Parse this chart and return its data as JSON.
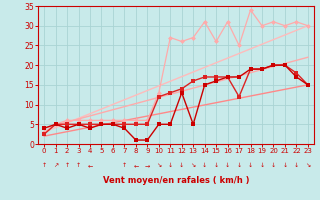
{
  "bg_color": "#c8eaea",
  "grid_color": "#aad4d4",
  "xlabel": "Vent moyen/en rafales ( km/h )",
  "xlabel_color": "#cc0000",
  "tick_color": "#cc0000",
  "xlim": [
    -0.5,
    23.5
  ],
  "ylim": [
    0,
    35
  ],
  "yticks": [
    0,
    5,
    10,
    15,
    20,
    25,
    30,
    35
  ],
  "xticks": [
    0,
    1,
    2,
    3,
    4,
    5,
    6,
    7,
    8,
    9,
    10,
    11,
    12,
    13,
    14,
    15,
    16,
    17,
    18,
    19,
    20,
    21,
    22,
    23
  ],
  "series": [
    {
      "comment": "lightest pink - nearly linear high trend (rafales max)",
      "x": [
        0,
        1,
        2,
        3,
        4,
        5,
        6,
        7,
        8,
        9,
        10,
        11,
        12,
        13,
        14,
        15,
        16,
        17,
        18,
        19,
        20,
        21,
        22,
        23
      ],
      "y": [
        3,
        5,
        6,
        6,
        6,
        6,
        6,
        6,
        6,
        6,
        13,
        27,
        26,
        27,
        31,
        26,
        31,
        25,
        34,
        30,
        31,
        30,
        31,
        30
      ],
      "color": "#ffaaaa",
      "lw": 0.9,
      "ms": 2.5,
      "marker": "D"
    },
    {
      "comment": "light pink linear trend line",
      "x": [
        0,
        23
      ],
      "y": [
        3,
        30
      ],
      "color": "#ffbbbb",
      "lw": 1.0,
      "ms": 0,
      "marker": ""
    },
    {
      "comment": "medium pink - second linear trend",
      "x": [
        0,
        23
      ],
      "y": [
        4,
        22
      ],
      "color": "#ffaaaa",
      "lw": 1.0,
      "ms": 0,
      "marker": ""
    },
    {
      "comment": "darker medium - third linear trend",
      "x": [
        0,
        23
      ],
      "y": [
        2,
        15
      ],
      "color": "#ff8888",
      "lw": 1.0,
      "ms": 0,
      "marker": ""
    },
    {
      "comment": "mid red jagged line with markers (vent moyen upper)",
      "x": [
        0,
        1,
        2,
        3,
        4,
        5,
        6,
        7,
        8,
        9,
        10,
        11,
        12,
        13,
        14,
        15,
        16,
        17,
        18,
        19,
        20,
        21,
        22,
        23
      ],
      "y": [
        2.5,
        5,
        5,
        5,
        5,
        5,
        5,
        5,
        5,
        5,
        12,
        13,
        14,
        16,
        17,
        17,
        17,
        12,
        19,
        19,
        20,
        20,
        18,
        15
      ],
      "color": "#dd2222",
      "lw": 1.0,
      "ms": 2.5,
      "marker": "s"
    },
    {
      "comment": "dark red jagged line - lower volatile",
      "x": [
        0,
        1,
        2,
        3,
        4,
        5,
        6,
        7,
        8,
        9,
        10,
        11,
        12,
        13,
        14,
        15,
        16,
        17,
        18,
        19,
        20,
        21,
        22,
        23
      ],
      "y": [
        4,
        5,
        4,
        5,
        4,
        5,
        5,
        4,
        1,
        1,
        5,
        5,
        13,
        5,
        15,
        16,
        17,
        17,
        19,
        19,
        20,
        20,
        17,
        15
      ],
      "color": "#cc0000",
      "lw": 1.0,
      "ms": 2.5,
      "marker": "s"
    }
  ],
  "wind_arrows": {
    "x": [
      0,
      1,
      2,
      3,
      4,
      5,
      6,
      7,
      8,
      9,
      10,
      11,
      12,
      13,
      14,
      15,
      16,
      17,
      18,
      19,
      20,
      21,
      22,
      23
    ],
    "symbols": [
      "↑",
      "↗",
      "↑",
      "↑",
      "←",
      " ",
      " ",
      "↑",
      "←",
      "→",
      "↘",
      "↓",
      "↓",
      "↘",
      "↓",
      "↓",
      "↓",
      "↓",
      "↓",
      "↓",
      "↓",
      "↓",
      "↓",
      "↘"
    ]
  }
}
